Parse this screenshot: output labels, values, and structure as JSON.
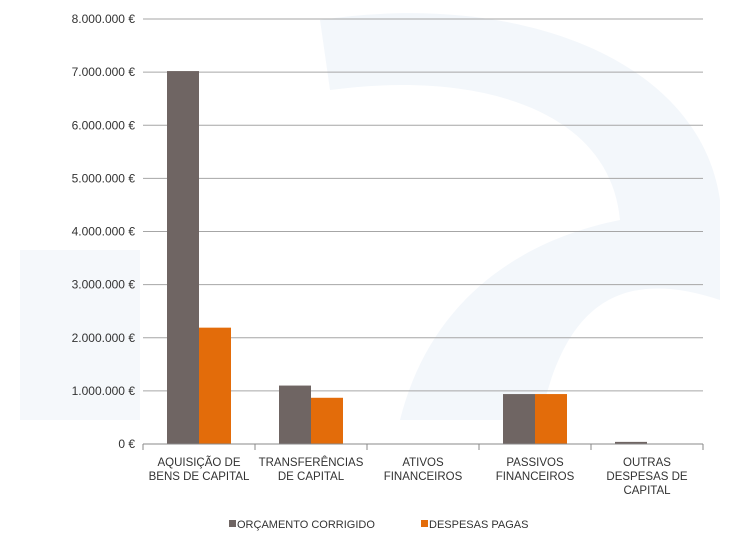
{
  "chart_data": {
    "type": "bar",
    "categories": [
      [
        "AQUISIÇÃO DE",
        "BENS DE CAPITAL"
      ],
      [
        "TRANSFERÊNCIAS",
        "DE CAPITAL"
      ],
      [
        "ATIVOS",
        "FINANCEIROS"
      ],
      [
        "PASSIVOS",
        "FINANCEIROS"
      ],
      [
        "OUTRAS",
        "DESPESAS DE",
        "CAPITAL"
      ]
    ],
    "series": [
      {
        "name": "ORÇAMENTO CORRIGIDO",
        "color": "#6f6563",
        "values": [
          7020000,
          1100000,
          0,
          940000,
          40000
        ]
      },
      {
        "name": "DESPESAS PAGAS",
        "color": "#e36c0a",
        "values": [
          2190000,
          870000,
          0,
          940000,
          0
        ]
      }
    ],
    "ylim": [
      0,
      8000000
    ],
    "yticks": [
      "0 €",
      "1.000.000 €",
      "2.000.000 €",
      "3.000.000 €",
      "4.000.000 €",
      "5.000.000 €",
      "6.000.000 €",
      "7.000.000 €",
      "8.000.000 €"
    ],
    "grid": true,
    "legend_position": "bottom",
    "gridline_color": "#a6a6a6",
    "axis_color": "#888888"
  }
}
